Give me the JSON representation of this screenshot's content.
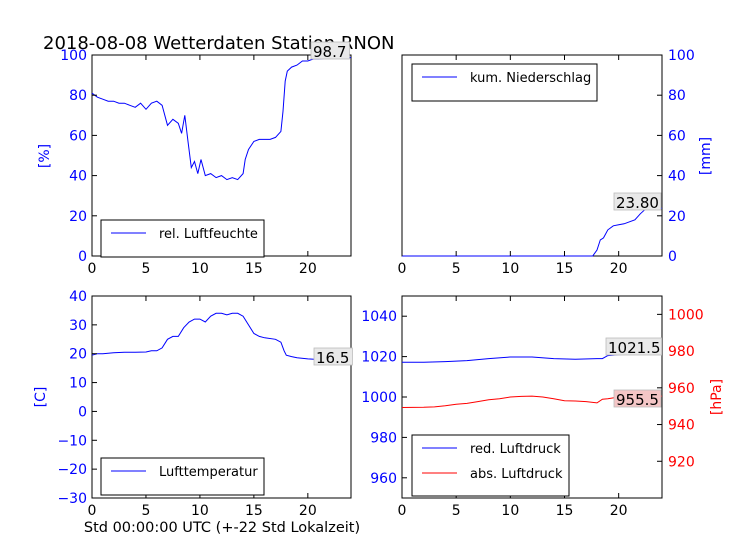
{
  "figure": {
    "title": "2018-08-08 Wetterdaten Station RNON",
    "xlabel": "Std 00:00:00 UTC (+-22 Std Lokalzeit)"
  },
  "colors": {
    "blue": "#0000ff",
    "red": "#ff0000",
    "frame": "#000000"
  },
  "chart_data": [
    {
      "type": "line",
      "panel": "top-left",
      "ylabel": "[%]",
      "xlim": [
        0,
        24
      ],
      "ylim": [
        0,
        100
      ],
      "xticks": [
        "0",
        "5",
        "10",
        "15",
        "20"
      ],
      "yticks": [
        "0",
        "20",
        "40",
        "60",
        "80",
        "100"
      ],
      "legend": "lower-left",
      "series": [
        {
          "name": "rel. Luftfeuchte",
          "color": "#0000ff",
          "x": [
            0,
            0.5,
            1,
            1.5,
            2,
            2.5,
            3,
            3.5,
            4,
            4.5,
            5,
            5.5,
            6,
            6.5,
            7,
            7.5,
            8,
            8.3,
            8.6,
            8.9,
            9.2,
            9.5,
            9.8,
            10.1,
            10.5,
            11,
            11.5,
            12,
            12.5,
            13,
            13.5,
            14,
            14.2,
            14.5,
            15,
            15.5,
            16,
            16.5,
            17,
            17.5,
            17.7,
            17.9,
            18.1,
            18.5,
            19,
            19.5,
            20,
            20.5,
            21,
            22,
            23,
            24
          ],
          "values": [
            81,
            79,
            78,
            77,
            77,
            76,
            76,
            75,
            74,
            76,
            73,
            76,
            77,
            75,
            65,
            68,
            66,
            61,
            70,
            57,
            44,
            47,
            41,
            48,
            40,
            41,
            39,
            40,
            38,
            39,
            38,
            41,
            48,
            53,
            57,
            58,
            58,
            58,
            59,
            62,
            72,
            87,
            92,
            94,
            95,
            97,
            97,
            98,
            98,
            98.5,
            98.7,
            98.7
          ]
        }
      ],
      "annotation": "98.7"
    },
    {
      "type": "line",
      "panel": "top-right",
      "ylabel": "[mm]",
      "xlim": [
        0,
        24
      ],
      "ylim": [
        0,
        100
      ],
      "xticks": [
        "0",
        "5",
        "10",
        "15",
        "20"
      ],
      "yticks": [
        "0",
        "20",
        "40",
        "60",
        "80",
        "100"
      ],
      "legend": "top-left",
      "series": [
        {
          "name": "kum. Niederschlag",
          "color": "#0000ff",
          "x": [
            0,
            17.6,
            18,
            18.3,
            18.6,
            19,
            19.5,
            20,
            20.5,
            21,
            21.5,
            22,
            22.5,
            23,
            24
          ],
          "values": [
            0,
            0,
            3,
            8,
            9,
            13,
            15,
            15.5,
            16,
            17,
            18,
            21,
            23.5,
            23.8,
            23.8
          ]
        }
      ],
      "annotation": "23.80"
    },
    {
      "type": "line",
      "panel": "bottom-left",
      "ylabel": "[C]",
      "xlim": [
        0,
        24
      ],
      "ylim": [
        -30,
        40
      ],
      "xticks": [
        "0",
        "5",
        "10",
        "15",
        "20"
      ],
      "yticks": [
        "−30",
        "−20",
        "−10",
        "0",
        "10",
        "20",
        "30",
        "40"
      ],
      "legend": "lower-left",
      "series": [
        {
          "name": "Lufttemperatur",
          "color": "#0000ff",
          "x": [
            0,
            0.5,
            1,
            2,
            3,
            4,
            5,
            5.5,
            6,
            6.5,
            7,
            7.5,
            8,
            8.5,
            9,
            9.5,
            10,
            10.5,
            11,
            11.5,
            12,
            12.5,
            13,
            13.5,
            14,
            14.5,
            15,
            15.5,
            16,
            17,
            17.5,
            17.8,
            18,
            18.5,
            19,
            20,
            21,
            22,
            23,
            24
          ],
          "values": [
            19.5,
            20,
            20,
            20.3,
            20.5,
            20.5,
            20.6,
            21,
            21,
            22,
            25,
            26,
            26,
            29,
            31,
            32,
            32,
            31,
            33,
            34,
            34,
            33.5,
            34,
            34,
            33,
            30,
            27,
            26,
            25.5,
            25,
            24,
            21,
            19.5,
            19,
            18.6,
            18.2,
            18,
            17.5,
            16.8,
            16.5
          ]
        }
      ],
      "annotation": "16.5"
    },
    {
      "type": "line",
      "panel": "bottom-right",
      "ylabel": "[hPa]",
      "xlim": [
        0,
        24
      ],
      "ylim": [
        950,
        1050
      ],
      "ylim_right": [
        900,
        1010
      ],
      "xticks": [
        "0",
        "5",
        "10",
        "15",
        "20"
      ],
      "yticks": [
        "960",
        "980",
        "1000",
        "1020",
        "1040"
      ],
      "yticks_right": [
        "920",
        "940",
        "960",
        "980",
        "1000"
      ],
      "legend": "lower-left",
      "series": [
        {
          "name": "red. Luftdruck",
          "color": "#0000ff",
          "axis": "left",
          "x": [
            0,
            2,
            4,
            6,
            8,
            10,
            12,
            14,
            16,
            18,
            18.5,
            19,
            20,
            22,
            24
          ],
          "values": [
            1017.2,
            1017.2,
            1017.5,
            1018,
            1019,
            1019.8,
            1019.8,
            1019,
            1018.7,
            1019,
            1019,
            1020.5,
            1021,
            1021.3,
            1021.5
          ]
        },
        {
          "name": "abs. Luftdruck",
          "color": "#ff0000",
          "axis": "right",
          "x": [
            0,
            2,
            3,
            4,
            5,
            6,
            7,
            8,
            9,
            10,
            11,
            12,
            13,
            14,
            15,
            16,
            17,
            18,
            18.5,
            19,
            20,
            21,
            22,
            23,
            24
          ],
          "values": [
            949.3,
            949.4,
            949.6,
            950.2,
            951,
            951.5,
            952.5,
            953.5,
            954,
            955,
            955.3,
            955.5,
            955,
            954,
            953,
            952.8,
            952.5,
            951.8,
            953.8,
            954,
            955,
            955.2,
            955.4,
            955.5,
            955.5
          ]
        }
      ],
      "annotations": [
        "1021.5",
        "955.5"
      ]
    }
  ]
}
